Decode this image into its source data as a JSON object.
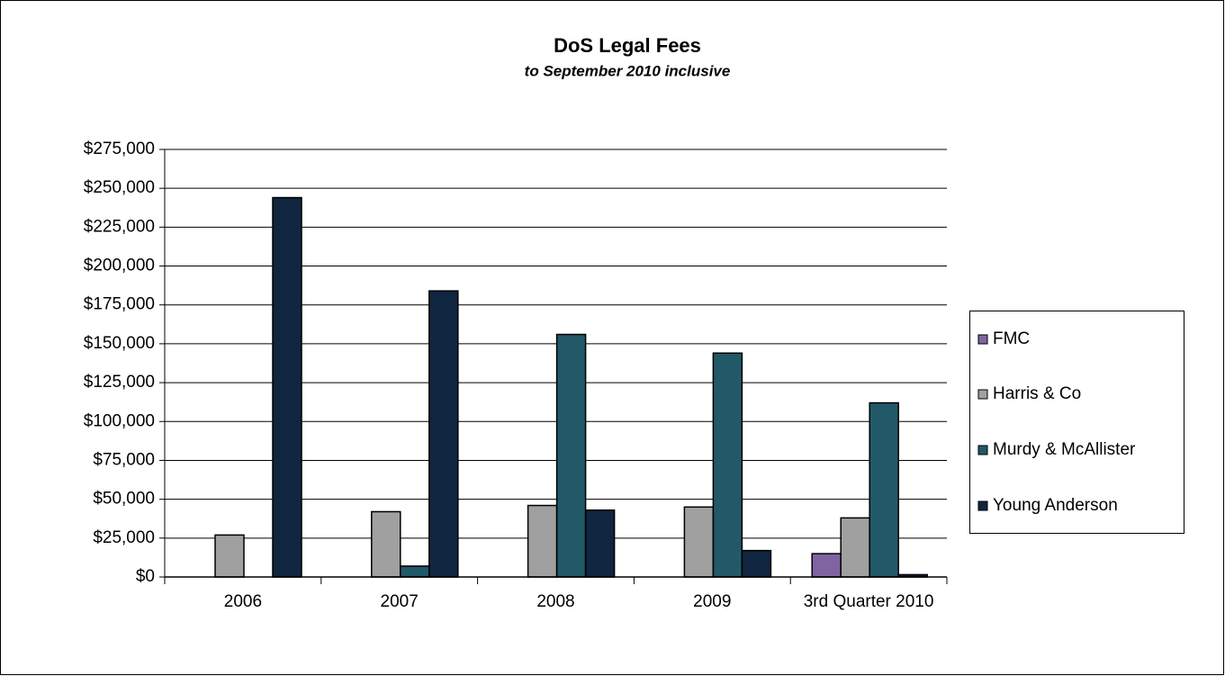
{
  "chart_data": {
    "type": "bar",
    "title": "DoS Legal Fees",
    "subtitle": "to September 2010 inclusive",
    "categories": [
      "2006",
      "2007",
      "2008",
      "2009",
      "3rd Quarter 2010"
    ],
    "series": [
      {
        "name": "FMC",
        "color": "#8064a2",
        "values": [
          null,
          null,
          null,
          null,
          15000
        ]
      },
      {
        "name": "Harris & Co",
        "color": "#a0a0a0",
        "values": [
          27000,
          42000,
          46000,
          45000,
          38000
        ]
      },
      {
        "name": "Murdy & McAllister",
        "color": "#215968",
        "values": [
          null,
          7000,
          156000,
          144000,
          112000
        ]
      },
      {
        "name": "Young Anderson",
        "color": "#10253f",
        "values": [
          244000,
          184000,
          43000,
          17000,
          1500
        ]
      }
    ],
    "ylim": [
      0,
      275000
    ],
    "yticks": [
      {
        "value": 0,
        "label": "$0"
      },
      {
        "value": 25000,
        "label": "$25,000"
      },
      {
        "value": 50000,
        "label": "$50,000"
      },
      {
        "value": 75000,
        "label": "$75,000"
      },
      {
        "value": 100000,
        "label": "$100,000"
      },
      {
        "value": 125000,
        "label": "$125,000"
      },
      {
        "value": 150000,
        "label": "$150,000"
      },
      {
        "value": 175000,
        "label": "$175,000"
      },
      {
        "value": 200000,
        "label": "$200,000"
      },
      {
        "value": 225000,
        "label": "$225,000"
      },
      {
        "value": 250000,
        "label": "$250,000"
      },
      {
        "value": 275000,
        "label": "$275,000"
      }
    ],
    "grid": true,
    "legend": "right"
  }
}
